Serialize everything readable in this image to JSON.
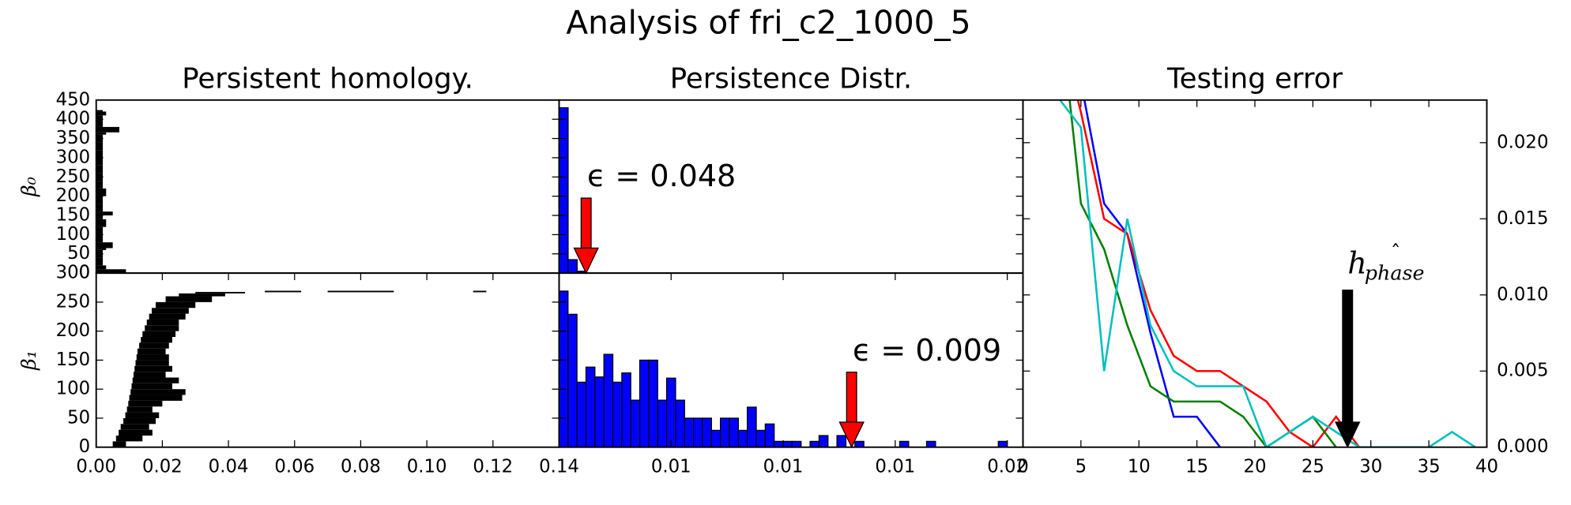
{
  "title": "Analysis of fri_c2_1000_5",
  "chart_data": [
    {
      "type": "barcode",
      "title": "Persistent homology.",
      "ylabel": "β₀",
      "color": "#000000",
      "y": [
        0,
        10,
        20,
        40,
        60,
        65,
        80,
        100,
        120,
        140,
        150,
        160,
        180,
        200,
        220,
        240,
        260,
        280,
        300,
        320,
        340,
        360,
        366,
        380,
        400,
        410,
        420
      ],
      "start": [
        0,
        0,
        0,
        0,
        0,
        0,
        0,
        0,
        0,
        0,
        0,
        0,
        0,
        0,
        0,
        0,
        0,
        0,
        0,
        0,
        0,
        0,
        0,
        0,
        0,
        0,
        0
      ],
      "end": [
        0.009,
        0.003,
        0.002,
        0.002,
        0.003,
        0.005,
        0.002,
        0.002,
        0.003,
        0.002,
        0.005,
        0.002,
        0.002,
        0.003,
        0.002,
        0.002,
        0.002,
        0.002,
        0.002,
        0.002,
        0.002,
        0.003,
        0.007,
        0.002,
        0.002,
        0.003,
        0.002
      ],
      "xlim": [
        0,
        0.14
      ],
      "ylim": [
        0,
        450
      ],
      "yticks": [
        0,
        50,
        100,
        150,
        200,
        250,
        300,
        350,
        400,
        450
      ]
    },
    {
      "type": "barcode",
      "ylabel": "β₁",
      "color": "#000000",
      "y": [
        0,
        10,
        20,
        30,
        40,
        50,
        60,
        70,
        80,
        90,
        100,
        110,
        120,
        130,
        140,
        150,
        160,
        170,
        180,
        190,
        200,
        210,
        220,
        230,
        240,
        250,
        260,
        265,
        267,
        267,
        267
      ],
      "start": [
        0.005,
        0.006,
        0.0068,
        0.0074,
        0.0082,
        0.0088,
        0.0093,
        0.0097,
        0.01,
        0.0104,
        0.0107,
        0.011,
        0.0113,
        0.0116,
        0.0119,
        0.0122,
        0.0125,
        0.013,
        0.0135,
        0.014,
        0.0147,
        0.0153,
        0.016,
        0.0168,
        0.018,
        0.021,
        0.025,
        0.03,
        0.051,
        0.07,
        0.114
      ],
      "end": [
        0.009,
        0.014,
        0.017,
        0.016,
        0.018,
        0.019,
        0.017,
        0.02,
        0.026,
        0.027,
        0.023,
        0.025,
        0.021,
        0.023,
        0.022,
        0.022,
        0.021,
        0.022,
        0.023,
        0.024,
        0.025,
        0.025,
        0.027,
        0.028,
        0.03,
        0.035,
        0.039,
        0.045,
        0.062,
        0.09,
        0.118
      ],
      "xlim": [
        0,
        0.14
      ],
      "ylim": [
        0,
        300
      ],
      "xticks": [
        {
          "value": 0,
          "label": "0.00"
        },
        {
          "value": 0.02,
          "label": "0.02"
        },
        {
          "value": 0.04,
          "label": "0.04"
        },
        {
          "value": 0.06,
          "label": "0.06"
        },
        {
          "value": 0.08,
          "label": "0.08"
        },
        {
          "value": 0.1,
          "label": "0.10"
        },
        {
          "value": 0.12,
          "label": "0.12"
        },
        {
          "value": 0.14,
          "label": "0.14"
        }
      ],
      "yticks": [
        0,
        50,
        100,
        150,
        200,
        250,
        300
      ]
    },
    {
      "type": "histogram",
      "title": "Persistence Distr.",
      "color": "#0000ff",
      "bins": [
        0,
        0.016,
        0.032,
        0.048
      ],
      "counts": [
        430,
        35,
        5
      ],
      "xlim": [
        0,
        0.82
      ],
      "ylim": [
        0,
        450
      ],
      "yticks": [
        0,
        50,
        100,
        150,
        200,
        250,
        300,
        350,
        400,
        450
      ],
      "tick_labels": false,
      "annotation": "ϵ = 0.048",
      "arrow_color": "#ff0000"
    },
    {
      "type": "histogram",
      "color": "#0000ff",
      "bins": [
        0,
        0.0004,
        0.0008,
        0.0012,
        0.0016,
        0.002,
        0.0024,
        0.0028,
        0.0032,
        0.0036,
        0.004,
        0.0044,
        0.0048,
        0.0052,
        0.0056,
        0.006,
        0.0064,
        0.0068,
        0.0072,
        0.0076,
        0.008,
        0.0084,
        0.0088,
        0.0092,
        0.0096,
        0.01,
        0.0104,
        0.0108,
        0.0112,
        0.0116,
        0.012,
        0.0124,
        0.0128,
        0.0132,
        0.0136,
        0.014,
        0.0144,
        0.0148,
        0.0152,
        0.0156,
        0.016,
        0.0164,
        0.0168,
        0.0172,
        0.0176,
        0.018,
        0.0184,
        0.0188,
        0.0192,
        0.0196,
        0.02
      ],
      "counts": [
        269,
        229,
        112,
        138,
        121,
        160,
        112,
        128,
        81,
        150,
        150,
        81,
        119,
        81,
        50,
        50,
        50,
        29,
        50,
        50,
        29,
        69,
        29,
        40,
        10,
        10,
        10,
        0,
        10,
        20,
        0,
        20,
        0,
        10,
        0,
        0,
        0,
        0,
        10,
        0,
        0,
        10,
        0,
        0,
        0,
        0,
        0,
        0,
        0,
        10
      ],
      "xlim": [
        0,
        0.0207
      ],
      "ylim": [
        0,
        300
      ],
      "xticks": [
        {
          "value": 0.005,
          "label": "0.01"
        },
        {
          "value": 0.01,
          "label": "0.01"
        },
        {
          "value": 0.015,
          "label": "0.01"
        },
        {
          "value": 0.02,
          "label": "0.02"
        }
      ],
      "yticks": [
        0,
        50,
        100,
        150,
        200,
        250,
        300
      ],
      "tick_labels": false,
      "annotation": "ϵ = 0.009",
      "arrow_color": "#ff0000"
    },
    {
      "type": "line",
      "title": "Testing error",
      "yaxis": "right",
      "x": [
        3,
        5,
        7,
        9,
        11,
        13,
        15,
        17,
        19,
        21,
        23,
        25,
        27,
        29,
        31,
        33,
        35,
        37,
        39
      ],
      "series": [
        {
          "color": "#0000ff",
          "values": [
            0.03,
            0.024,
            0.016,
            0.014,
            0.0075,
            0.002,
            0.002,
            0,
            null,
            null,
            null,
            null,
            null,
            null,
            null,
            null,
            null,
            null,
            null
          ]
        },
        {
          "color": "#ff0000",
          "values": [
            0.028,
            0.022,
            0.015,
            0.014,
            0.009,
            0.006,
            0.005,
            0.005,
            0.004,
            0.003,
            0.001,
            0,
            0.002,
            0,
            null,
            null,
            null,
            null,
            null
          ]
        },
        {
          "color": "#008000",
          "values": [
            0.03,
            0.016,
            0.013,
            0.008,
            0.004,
            0.003,
            0.003,
            0.003,
            0.002,
            0,
            0.001,
            0.002,
            0,
            null,
            null,
            null,
            null,
            null,
            null
          ]
        },
        {
          "color": "#00bfbf",
          "values": [
            0.023,
            0.021,
            0.005,
            0.015,
            0.008,
            0.005,
            0.004,
            0.004,
            0.004,
            0,
            0.001,
            0.002,
            0.001,
            0,
            0,
            0,
            0,
            0.001,
            0
          ]
        }
      ],
      "xlim": [
        0,
        40
      ],
      "ylim": [
        0,
        0.0228
      ],
      "xticks": [
        0,
        5,
        10,
        15,
        20,
        25,
        30,
        35,
        40
      ],
      "yticks": [
        {
          "value": 0,
          "label": "0.000"
        },
        {
          "value": 0.005,
          "label": "0.005"
        },
        {
          "value": 0.01,
          "label": "0.010"
        },
        {
          "value": 0.015,
          "label": "0.015"
        },
        {
          "value": 0.02,
          "label": "0.020"
        }
      ],
      "annotation": "h",
      "annotation_subscript": "phase",
      "annotation_hat": "ˆ",
      "arrow_color": "#000000"
    }
  ]
}
